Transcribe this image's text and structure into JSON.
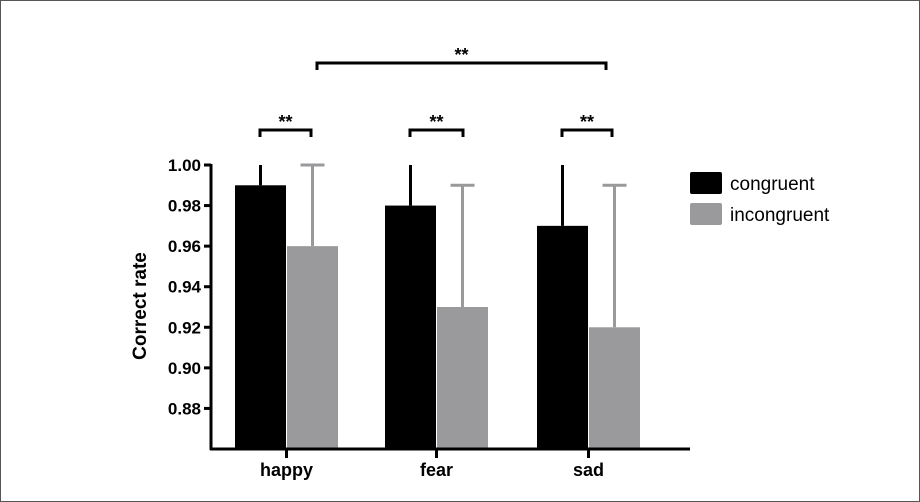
{
  "chart_data": {
    "type": "bar",
    "ylabel": "Correct rate",
    "xlabel": "",
    "ylim": [
      0.86,
      1.0
    ],
    "yticks": [
      "1.00",
      "0.98",
      "0.96",
      "0.94",
      "0.92",
      "0.90",
      "0.88"
    ],
    "categories": [
      "happy",
      "fear",
      "sad"
    ],
    "series": [
      {
        "name": "congruent",
        "color": "#000000",
        "values": [
          0.99,
          0.98,
          0.97
        ],
        "error_upper": [
          1.0,
          1.0,
          1.0
        ]
      },
      {
        "name": "incongruent",
        "color": "#9a9a9c",
        "values": [
          0.96,
          0.93,
          0.92
        ],
        "error_upper": [
          1.0,
          0.99,
          0.99
        ]
      }
    ],
    "significance": [
      {
        "label": "**",
        "between": "happy congruent vs incongruent"
      },
      {
        "label": "**",
        "between": "fear congruent vs incongruent"
      },
      {
        "label": "**",
        "between": "sad congruent vs incongruent"
      },
      {
        "label": "**",
        "between": "happy incongruent vs sad incongruent"
      }
    ],
    "legend": "right",
    "grid": false
  }
}
